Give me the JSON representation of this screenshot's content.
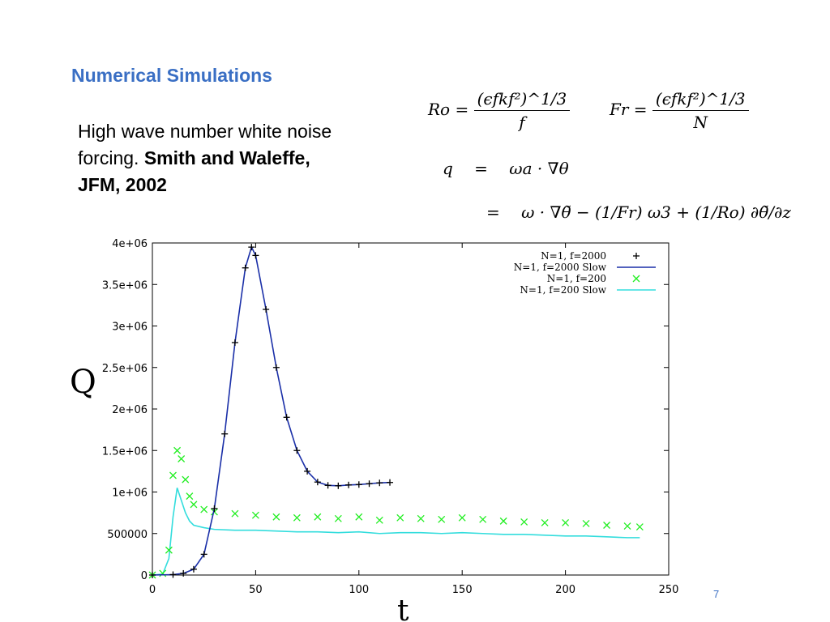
{
  "slide": {
    "title": "Numerical Simulations",
    "desc_plain": "High wave number white noise forcing.",
    "desc_bold": "Smith and Waleffe, JFM, 2002",
    "page_number": "7"
  },
  "equations": {
    "ro_lhs": "Ro =",
    "fr_lhs": "Fr =",
    "num_top": "(ϵfkf²)^1/3",
    "ro_den": "f",
    "fr_den": "N",
    "q_line1_lhs": "q",
    "q_line1_rhs": "ωa · ∇θ",
    "q_line2_rhs": "ω · ∇θ̃ − (1/Fr) ω3 + (1/Ro) ∂θ̃/∂z"
  },
  "chart_data": {
    "type": "line",
    "xlabel": "t",
    "ylabel": "Q",
    "xlim": [
      0,
      250
    ],
    "ylim": [
      0,
      4000000
    ],
    "x_ticks": [
      "0",
      "50",
      "100",
      "150",
      "200",
      "250"
    ],
    "y_ticks": [
      "0",
      "500000",
      "1e+06",
      "1.5e+06",
      "2e+06",
      "2.5e+06",
      "3e+06",
      "3.5e+06",
      "4e+06"
    ],
    "legend_position": "top-right",
    "series": [
      {
        "name": "N=1, f=2000",
        "marker": "plus",
        "color": "#000000",
        "x": [
          0,
          10,
          15,
          20,
          25,
          30,
          35,
          40,
          45,
          48,
          50,
          55,
          60,
          65,
          70,
          75,
          80,
          85,
          90,
          95,
          100,
          105,
          110,
          115
        ],
        "y": [
          0,
          5000,
          20000,
          70000,
          250000,
          800000,
          1700000,
          2800000,
          3700000,
          3950000,
          3850000,
          3200000,
          2500000,
          1900000,
          1500000,
          1250000,
          1120000,
          1080000,
          1075000,
          1085000,
          1090000,
          1100000,
          1110000,
          1115000
        ]
      },
      {
        "name": "N=1, f=2000 Slow",
        "marker": "line",
        "color": "#1a2fa8",
        "x": [
          0,
          10,
          15,
          20,
          25,
          30,
          35,
          40,
          45,
          48,
          50,
          55,
          60,
          65,
          70,
          75,
          80,
          85,
          90,
          95,
          100,
          105,
          110,
          115
        ],
        "y": [
          0,
          5000,
          20000,
          70000,
          250000,
          800000,
          1700000,
          2800000,
          3700000,
          3950000,
          3850000,
          3200000,
          2500000,
          1900000,
          1500000,
          1250000,
          1120000,
          1080000,
          1075000,
          1085000,
          1090000,
          1100000,
          1110000,
          1115000
        ]
      },
      {
        "name": "N=1, f=200",
        "marker": "cross",
        "color": "#22ee22",
        "x": [
          0,
          5,
          8,
          10,
          12,
          14,
          16,
          18,
          20,
          25,
          30,
          40,
          50,
          60,
          70,
          80,
          90,
          100,
          110,
          120,
          130,
          140,
          150,
          160,
          170,
          180,
          190,
          200,
          210,
          220,
          230,
          236
        ],
        "y": [
          0,
          20000,
          300000,
          1200000,
          1500000,
          1400000,
          1150000,
          950000,
          850000,
          790000,
          760000,
          740000,
          720000,
          700000,
          690000,
          700000,
          680000,
          700000,
          660000,
          690000,
          680000,
          670000,
          690000,
          670000,
          650000,
          640000,
          630000,
          630000,
          620000,
          600000,
          590000,
          580000
        ]
      },
      {
        "name": "N=1, f=200 Slow",
        "marker": "line",
        "color": "#33dddd",
        "x": [
          0,
          5,
          8,
          10,
          12,
          14,
          16,
          18,
          20,
          25,
          30,
          40,
          50,
          60,
          70,
          80,
          90,
          100,
          110,
          120,
          130,
          140,
          150,
          160,
          170,
          180,
          190,
          200,
          210,
          220,
          230,
          236
        ],
        "y": [
          0,
          10000,
          200000,
          700000,
          1050000,
          900000,
          750000,
          650000,
          600000,
          570000,
          550000,
          540000,
          540000,
          530000,
          520000,
          520000,
          510000,
          520000,
          500000,
          510000,
          510000,
          500000,
          510000,
          500000,
          490000,
          490000,
          480000,
          470000,
          470000,
          460000,
          450000,
          450000
        ]
      }
    ]
  }
}
